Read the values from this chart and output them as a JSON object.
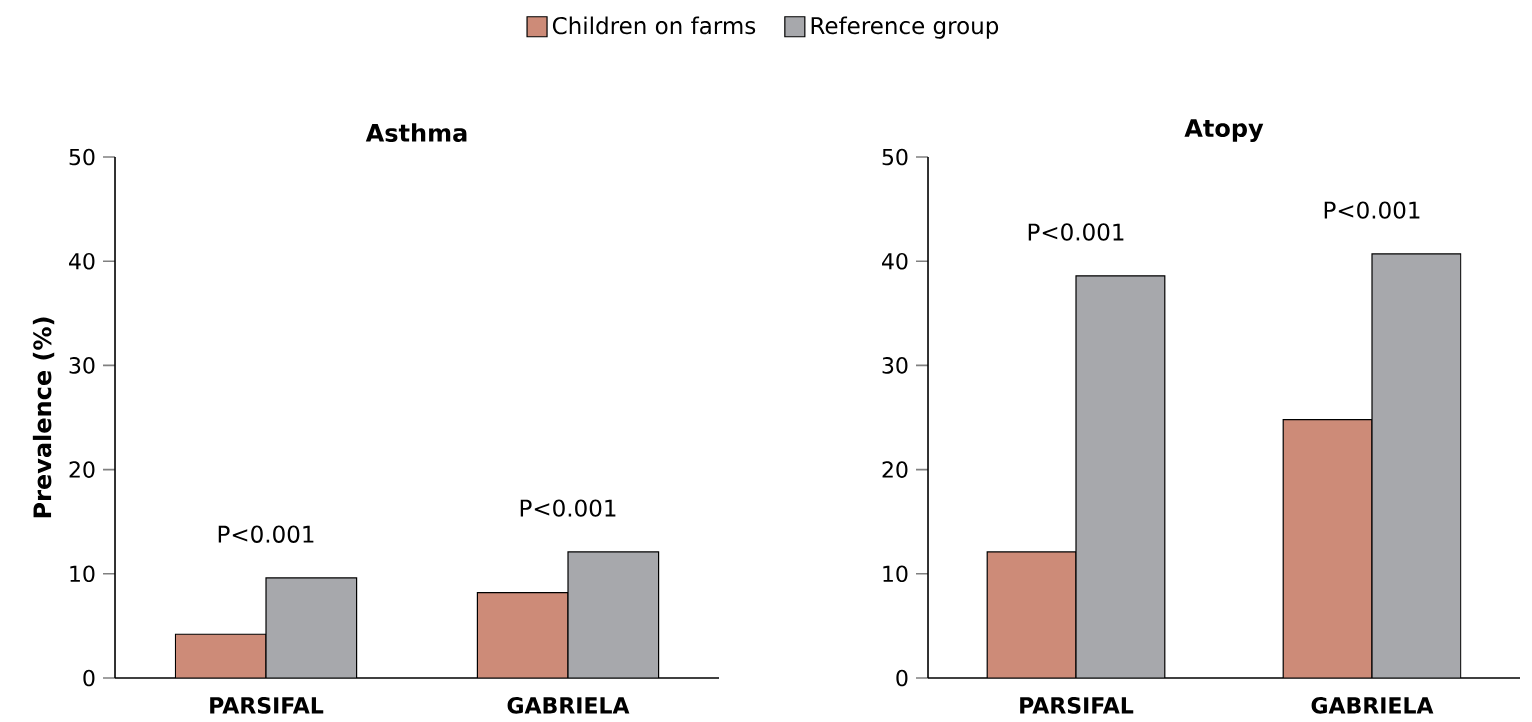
{
  "chart_data": [
    {
      "type": "bar",
      "title": "Asthma",
      "ylabel": "Prevalence (%)",
      "categories": [
        "PARSIFAL",
        "GABRIELA"
      ],
      "series": [
        {
          "name": "Children on farms",
          "color": "#cd8b78",
          "values": [
            4.2,
            8.2
          ]
        },
        {
          "name": "Reference group",
          "color": "#a7a8ac",
          "values": [
            9.6,
            12.1
          ]
        }
      ],
      "ylim": [
        0,
        50
      ],
      "yticks": [
        0,
        10,
        20,
        30,
        40,
        50
      ],
      "grid": false,
      "legend": "top",
      "annotations": [
        "P<0.001",
        "P<0.001"
      ]
    },
    {
      "type": "bar",
      "title": "Atopy",
      "categories": [
        "PARSIFAL",
        "GABRIELA"
      ],
      "series": [
        {
          "color": "#cd8b78",
          "values": [
            12.1,
            24.8
          ]
        },
        {
          "color": "#a7a8ac",
          "values": [
            38.6,
            40.7
          ]
        }
      ],
      "ylim": [
        0,
        50
      ],
      "yticks": [
        0,
        10,
        20,
        30,
        40,
        50
      ],
      "grid": false,
      "annotations": [
        "P<0.001",
        "P<0.001"
      ]
    }
  ]
}
